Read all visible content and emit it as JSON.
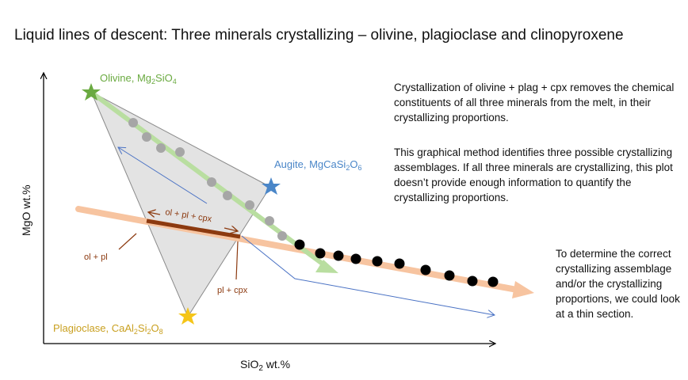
{
  "title": "Liquid lines of descent: Three minerals crystallizing – olivine, plagioclase and clinopyroxene",
  "text": {
    "para1": "Crystallization of olivine + plag + cpx removes the chemical constituents of all three minerals from the melt, in their crystallizing proportions.",
    "para2": "This graphical method identifies three possible crystallizing assemblages. If all three minerals are crystallizing, this plot doesn’t provide enough information to quantify the crystallizing proportions.",
    "para3": "To determine the correct crystallizing assemblage and/or the crystallizing proportions, we could look at a thin section."
  },
  "axes": {
    "x_label_main": "SiO",
    "x_label_sub": "2",
    "x_label_tail": " wt.%",
    "y_label": "MgO wt.%"
  },
  "minerals": {
    "olivine": {
      "name": "Olivine, Mg",
      "sub1": "2",
      "mid": "SiO",
      "sub2": "4",
      "color": "#6aaa40"
    },
    "augite": {
      "name": "Augite, MgCaSi",
      "sub1": "2",
      "mid": "O",
      "sub2": "6",
      "color": "#4a86c8"
    },
    "plagioclase": {
      "name": "Plagioclase, CaAl",
      "sub1": "2",
      "mid": "Si",
      "sub2": "2",
      "mid2": "O",
      "sub3": "8",
      "color": "#c9a020"
    }
  },
  "labels": {
    "ol_pl_cpx": "ol + pl + cpx",
    "ol_pl": "ol + pl",
    "pl_cpx": "pl + cpx"
  },
  "colors": {
    "triangle_fill": "#e3e3e3",
    "triangle_stroke": "#8a8a8a",
    "green_arrow": "#b9dea0",
    "orange_arrow": "#f7c4a0",
    "blue_line": "#4a72c4",
    "brown": "#8c3a10",
    "grey_dot": "#a6a6a6",
    "black_dot": "#000000"
  }
}
